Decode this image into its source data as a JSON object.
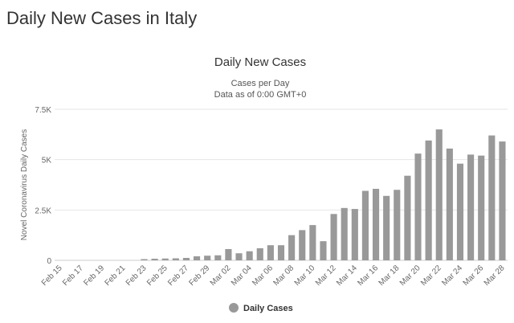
{
  "page": {
    "title": "Daily New Cases in Italy"
  },
  "chart_data": {
    "type": "bar",
    "title": "Daily New Cases",
    "subtitle_lines": [
      "Cases per Day",
      "Data as of 0:00 GMT+0"
    ],
    "xlabel": "",
    "ylabel": "Novel Coronavirus Daily Cases",
    "ylim": [
      0,
      7500
    ],
    "yticks": [
      0,
      2500,
      5000,
      7500
    ],
    "ytick_labels": [
      "0",
      "2.5K",
      "5K",
      "7.5K"
    ],
    "grid": true,
    "legend_position": "bottom-center",
    "bar_color": "#999999",
    "categories": [
      "Feb 15",
      "Feb 16",
      "Feb 17",
      "Feb 18",
      "Feb 19",
      "Feb 20",
      "Feb 21",
      "Feb 22",
      "Feb 23",
      "Feb 24",
      "Feb 25",
      "Feb 26",
      "Feb 27",
      "Feb 28",
      "Feb 29",
      "Mar 01",
      "Mar 02",
      "Mar 03",
      "Mar 04",
      "Mar 05",
      "Mar 06",
      "Mar 07",
      "Mar 08",
      "Mar 09",
      "Mar 10",
      "Mar 11",
      "Mar 12",
      "Mar 13",
      "Mar 14",
      "Mar 15",
      "Mar 16",
      "Mar 17",
      "Mar 18",
      "Mar 19",
      "Mar 20",
      "Mar 21",
      "Mar 22",
      "Mar 23",
      "Mar 24",
      "Mar 25",
      "Mar 26",
      "Mar 27",
      "Mar 28"
    ],
    "tick_labels": [
      "Feb 15",
      "Feb 17",
      "Feb 19",
      "Feb 21",
      "Feb 23",
      "Feb 25",
      "Feb 27",
      "Feb 29",
      "Mar 02",
      "Mar 04",
      "Mar 06",
      "Mar 08",
      "Mar 10",
      "Mar 12",
      "Mar 14",
      "Mar 16",
      "Mar 18",
      "Mar 20",
      "Mar 22",
      "Mar 24",
      "Mar 26",
      "Mar 28"
    ],
    "series": [
      {
        "name": "Daily Cases",
        "values": [
          0,
          0,
          0,
          0,
          0,
          0,
          0,
          0,
          60,
          80,
          90,
          100,
          120,
          200,
          230,
          250,
          560,
          350,
          450,
          600,
          750,
          750,
          1250,
          1500,
          1750,
          950,
          2300,
          2600,
          2550,
          3450,
          3550,
          3200,
          3500,
          4200,
          5300,
          5950,
          6500,
          5550,
          4800,
          5250,
          5200,
          6200,
          5900
        ]
      }
    ]
  }
}
